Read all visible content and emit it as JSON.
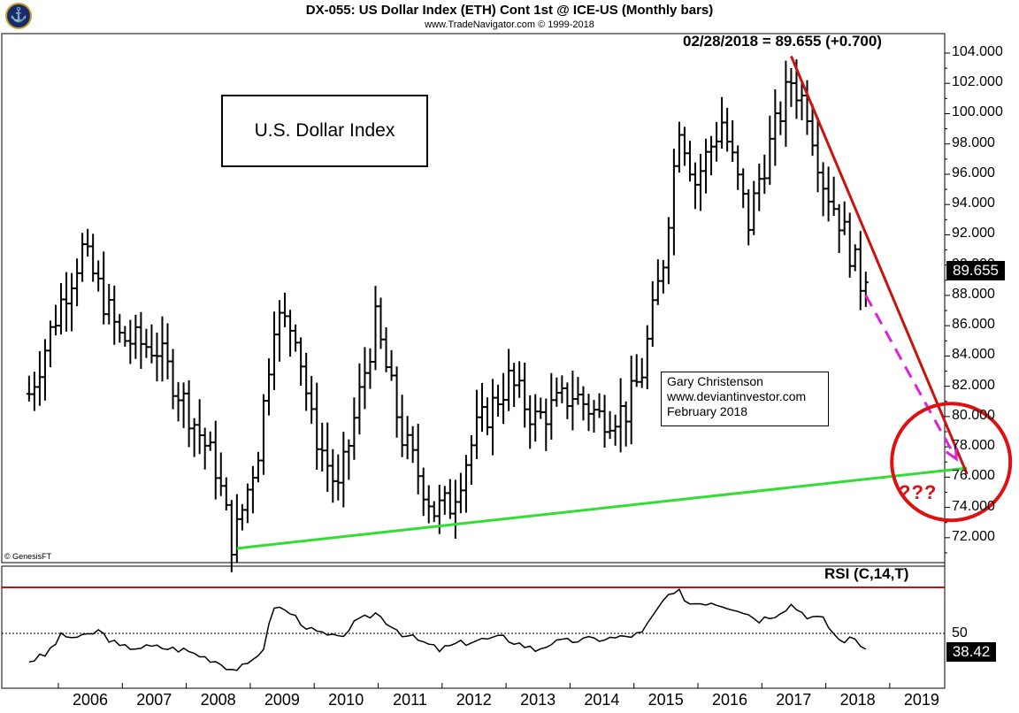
{
  "header": {
    "title": "DX-055:  US Dollar Index (ETH) Cont 1st @ ICE-US  (Monthly bars)",
    "subtitle": "www.TradeNavigator.com © 1999-2018",
    "last_label": "02/28/2018 = 89.655 (+0.700)"
  },
  "annotations": {
    "box_title": "U.S. Dollar Index",
    "author_lines": [
      "Gary Christenson",
      "www.deviantinvestor.com",
      "February 2018"
    ],
    "question": "???",
    "copyright": "© GenesisFT"
  },
  "colors": {
    "bars": "#000000",
    "downtrend": "#cc1111",
    "support": "#33dd33",
    "projection": "#dd22dd",
    "circle": "#dd1111",
    "rsi_line": "#000000",
    "rsi_upper": "#cc1111"
  },
  "price_axis": {
    "ticks": [
      "104.000",
      "102.000",
      "100.000",
      "98.000",
      "96.000",
      "94.000",
      "92.000",
      "90.000",
      "88.000",
      "86.000",
      "84.000",
      "82.000",
      "80.000",
      "78.000",
      "76.000",
      "74.000",
      "72.000"
    ],
    "last_price": "89.655"
  },
  "rsi": {
    "title": "RSI (C,14,T)",
    "level_label": "50",
    "last": "38.42"
  },
  "x_axis": {
    "labels": [
      "2006",
      "2007",
      "2008",
      "2009",
      "2010",
      "2011",
      "2012",
      "2013",
      "2014",
      "2015",
      "2016",
      "2017",
      "2018",
      "2019"
    ]
  },
  "chart_data": [
    {
      "type": "ohlc",
      "title": "DX-055:  US Dollar Index (ETH) Cont 1st @ ICE-US  (Monthly bars)",
      "frequency": "monthly",
      "x_range": [
        "2005-01",
        "2019-12"
      ],
      "ylim": [
        70.5,
        105
      ],
      "series": [
        {
          "name": "US Dollar Index",
          "x": [
            "2005-01",
            "2005-07",
            "2005-11",
            "2006-06",
            "2007-01",
            "2007-07",
            "2007-12",
            "2008-03",
            "2008-04",
            "2008-08",
            "2008-11",
            "2009-03",
            "2009-06",
            "2009-11",
            "2010-06",
            "2010-11",
            "2011-05",
            "2011-08",
            "2012-01",
            "2012-07",
            "2012-12",
            "2013-07",
            "2013-12",
            "2014-05",
            "2014-08",
            "2014-12",
            "2015-03",
            "2015-06",
            "2015-11",
            "2016-04",
            "2016-06",
            "2016-11",
            "2016-12",
            "2017-03",
            "2017-06",
            "2017-09",
            "2018-01",
            "2018-02"
          ],
          "close": [
            81.5,
            87.6,
            91.0,
            85.2,
            84.5,
            80.3,
            76.7,
            71.8,
            72.5,
            77.9,
            86.5,
            85.8,
            79.6,
            75.0,
            86.2,
            78.7,
            73.8,
            74.2,
            79.1,
            82.4,
            79.8,
            81.5,
            80.0,
            80.4,
            83.0,
            90.4,
            99.5,
            95.5,
            99.5,
            92.8,
            95.7,
            101.2,
            102.2,
            100.4,
            95.6,
            93.1,
            88.9,
            89.7
          ],
          "note": "approximate monthly closes read from bars"
        }
      ],
      "annotations": [
        {
          "type": "trendline",
          "color": "red",
          "from": {
            "x": "2016-12",
            "y": 103.8
          },
          "to": {
            "x": "2019-09",
            "y": 76.2
          }
        },
        {
          "type": "trendline",
          "color": "green",
          "from": {
            "x": "2008-04",
            "y": 71.3
          },
          "to": {
            "x": "2019-09",
            "y": 76.6
          }
        },
        {
          "type": "dashed-arrow",
          "color": "magenta",
          "from": {
            "x": "2018-02",
            "y": 88.0
          },
          "to": {
            "x": "2019-07",
            "y": 77.2
          }
        },
        {
          "type": "circle",
          "color": "red",
          "center": {
            "x": "2019-06",
            "y": 77.0
          }
        }
      ]
    },
    {
      "type": "line",
      "title": "RSI (C,14,T)",
      "x_range": [
        "2005-01",
        "2019-12"
      ],
      "ylim": [
        20,
        90
      ],
      "reference_lines": [
        50,
        84
      ],
      "series": [
        {
          "name": "RSI (C,14,T)",
          "x": [
            "2005-01",
            "2005-04",
            "2005-07",
            "2005-11",
            "2006-02",
            "2006-06",
            "2007-01",
            "2007-06",
            "2007-12",
            "2008-03",
            "2008-06",
            "2008-09",
            "2008-11",
            "2009-02",
            "2009-06",
            "2009-11",
            "2010-02",
            "2010-06",
            "2010-11",
            "2011-02",
            "2011-06",
            "2011-09",
            "2012-01",
            "2012-06",
            "2012-12",
            "2013-03",
            "2013-08",
            "2013-12",
            "2014-04",
            "2014-08",
            "2014-12",
            "2015-03",
            "2015-05",
            "2015-09",
            "2016-02",
            "2016-06",
            "2016-09",
            "2016-12",
            "2017-03",
            "2017-06",
            "2017-09",
            "2017-12",
            "2018-02"
          ],
          "y": [
            30,
            34,
            48,
            47,
            52,
            40,
            40,
            38,
            30,
            24,
            26,
            40,
            70,
            65,
            52,
            46,
            57,
            65,
            50,
            45,
            38,
            42,
            45,
            47,
            38,
            43,
            45,
            46,
            47,
            50,
            74,
            80,
            72,
            73,
            68,
            60,
            64,
            71,
            63,
            60,
            45,
            46,
            38.42
          ]
        }
      ]
    }
  ]
}
